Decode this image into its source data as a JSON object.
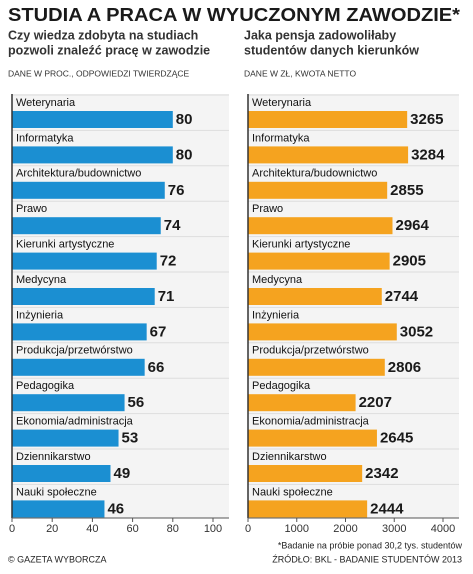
{
  "header": {
    "title": "STUDIA A PRACA W WYUCZONYM ZAWODZIE*"
  },
  "footer": {
    "credit": "© GAZETA WYBORCZA",
    "footnote": "*Badanie na próbie ponad 30,2 tys. studentów",
    "source": "ŹRÓDŁO: BKL - BADANIE STUDENTÓW 2013"
  },
  "chart_data": [
    {
      "type": "barh",
      "subtitle": [
        "Czy wiedza zdobyta na studiach",
        "pozwoli znaleźć pracę w zawodzie"
      ],
      "note": "DANE W PROC., ODPOWIEDZI TWIERDZĄCE",
      "categories": [
        "Weterynaria",
        "Informatyka",
        "Architektura/budownictwo",
        "Prawo",
        "Kierunki artystyczne",
        "Medycyna",
        "Inżynieria",
        "Produkcja/przetwórstwo",
        "Pedagogika",
        "Ekonomia/administracja",
        "Dziennikarstwo",
        "Nauki społeczne"
      ],
      "values": [
        80,
        80,
        76,
        74,
        72,
        71,
        67,
        66,
        56,
        53,
        49,
        46
      ],
      "color": "#1b8fd2",
      "xlim": [
        0,
        100
      ],
      "xticks": [
        0,
        20,
        40,
        60,
        80,
        100
      ]
    },
    {
      "type": "barh",
      "subtitle": [
        "Jaka pensja zadowoliłaby",
        "studentów danych kierunków"
      ],
      "note": "DANE W ZŁ, KWOTA NETTO",
      "categories": [
        "Weterynaria",
        "Informatyka",
        "Architektura/budownictwo",
        "Prawo",
        "Kierunki artystyczne",
        "Medycyna",
        "Inżynieria",
        "Produkcja/przetwórstwo",
        "Pedagogika",
        "Ekonomia/administracja",
        "Dziennikarstwo",
        "Nauki społeczne"
      ],
      "values": [
        3265,
        3284,
        2855,
        2964,
        2905,
        2744,
        3052,
        2806,
        2207,
        2645,
        2342,
        2444
      ],
      "color": "#f5a31f",
      "xlim": [
        0,
        4000
      ],
      "xticks": [
        0,
        1000,
        2000,
        3000,
        4000
      ]
    }
  ]
}
